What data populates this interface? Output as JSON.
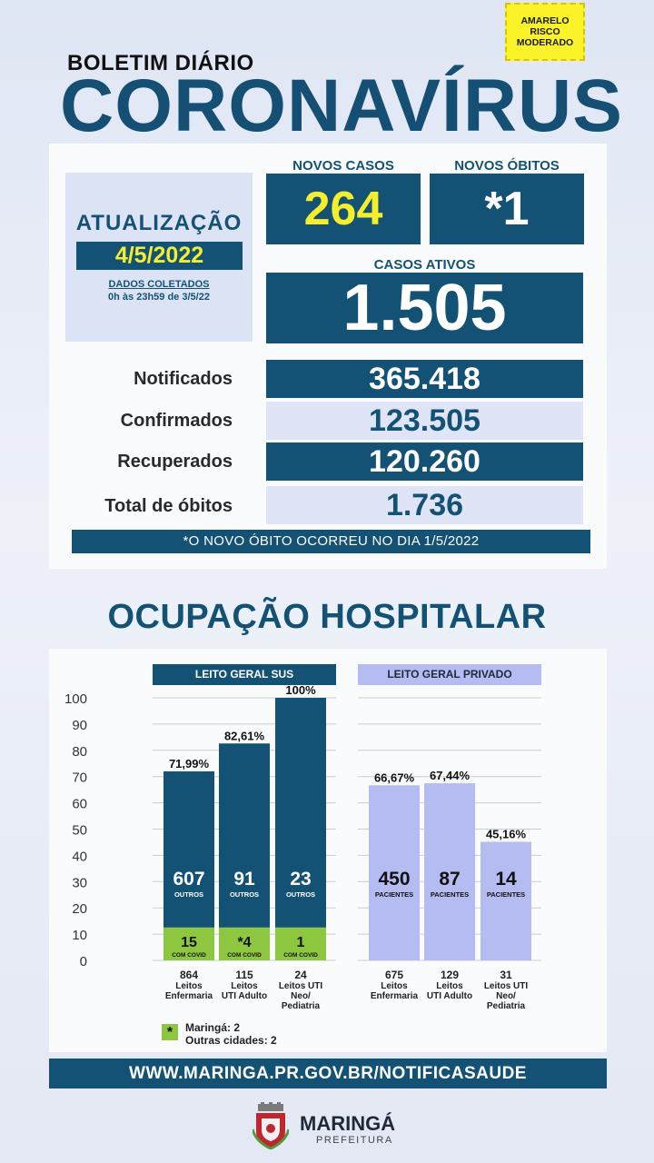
{
  "risk_badge": [
    "AMARELO",
    "RISCO",
    "MODERADO"
  ],
  "header": {
    "kicker": "BOLETIM DIÁRIO",
    "title": "CORONAVÍRUS"
  },
  "update": {
    "title": "ATUALIZAÇÃO",
    "date": "4/5/2022",
    "collected_label": "DADOS COLETADOS",
    "collected_range": "0h às 23h59 de 3/5/22"
  },
  "new_cases": {
    "label": "NOVOS CASOS",
    "value": "264"
  },
  "new_deaths": {
    "label": "NOVOS ÓBITOS",
    "value": "*1"
  },
  "active_cases": {
    "label": "CASOS ATIVOS",
    "value": "1.505"
  },
  "stats": [
    {
      "label": "Notificados",
      "value": "365.418"
    },
    {
      "label": "Confirmados",
      "value": "123.505"
    },
    {
      "label": "Recuperados",
      "value": "120.260"
    },
    {
      "label": "Total de óbitos",
      "value": "1.736"
    }
  ],
  "note": "*O NOVO  ÓBITO OCORREU NO DIA 1/5/2022",
  "occupancy_title": "OCUPAÇÃO HOSPITALAR",
  "colors": {
    "navy": "#145275",
    "yellow": "#f6ee2d",
    "green": "#8dc63f",
    "lavender": "#b4bcf1"
  },
  "chart_data": {
    "type": "bar",
    "y_ticks": [
      "100",
      "90",
      "80",
      "70",
      "60",
      "50",
      "40",
      "30",
      "20",
      "10",
      "0"
    ],
    "ylim": [
      0,
      100
    ],
    "grid": true,
    "groups": [
      {
        "header": "LEITO GERAL SUS",
        "bars": [
          {
            "percent_label": "71,99%",
            "percent": 71.99,
            "covid_percent": 12.5,
            "others": "607",
            "others_label": "OUTROS",
            "covid": "15",
            "covid_label": "COM COVID",
            "beds": "864",
            "bed_type": [
              "Leitos",
              "Enfermaria"
            ]
          },
          {
            "percent_label": "82,61%",
            "percent": 82.61,
            "covid_percent": 12.5,
            "others": "91",
            "others_label": "OUTROS",
            "covid": "*4",
            "covid_label": "COM COVID",
            "beds": "115",
            "bed_type": [
              "Leitos",
              "UTI Adulto"
            ]
          },
          {
            "percent_label": "100%",
            "percent": 100,
            "covid_percent": 12.5,
            "others": "23",
            "others_label": "OUTROS",
            "covid": "1",
            "covid_label": "COM COVID",
            "beds": "24",
            "bed_type": [
              "Leitos UTI",
              "Neo/",
              "Pediatria"
            ]
          }
        ]
      },
      {
        "header": "LEITO GERAL PRIVADO",
        "bars": [
          {
            "percent_label": "66,67%",
            "percent": 66.67,
            "patients": "450",
            "patients_label": "PACIENTES",
            "beds": "675",
            "bed_type": [
              "Leitos",
              "Enfermaria"
            ]
          },
          {
            "percent_label": "67,44%",
            "percent": 67.44,
            "patients": "87",
            "patients_label": "PACIENTES",
            "beds": "129",
            "bed_type": [
              "Leitos",
              "UTI Adulto"
            ]
          },
          {
            "percent_label": "45,16%",
            "percent": 45.16,
            "patients": "14",
            "patients_label": "PACIENTES",
            "beds": "31",
            "bed_type": [
              "Leitos UTI",
              "Neo/",
              "Pediatria"
            ]
          }
        ]
      }
    ]
  },
  "legend": {
    "symbol": "*",
    "lines": [
      "Maringá: 2",
      "Outras cidades: 2"
    ]
  },
  "url": "WWW.MARINGA.PR.GOV.BR/NOTIFICASAUDE",
  "footer": {
    "city": "MARINGÁ",
    "sub": "PREFEITURA"
  }
}
